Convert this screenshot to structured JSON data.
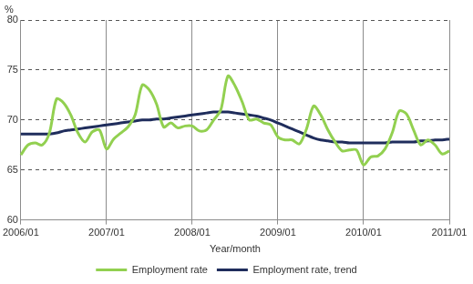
{
  "chart_data": {
    "type": "line",
    "ylabel": "%",
    "xlabel": "Year/month",
    "categories": [
      "2006/01",
      null,
      null,
      null,
      null,
      null,
      null,
      null,
      null,
      null,
      null,
      null,
      "2007/01",
      null,
      null,
      null,
      null,
      null,
      null,
      null,
      null,
      null,
      null,
      null,
      "2008/01",
      null,
      null,
      null,
      null,
      null,
      null,
      null,
      null,
      null,
      null,
      null,
      "2009/01",
      null,
      null,
      null,
      null,
      null,
      null,
      null,
      null,
      null,
      null,
      null,
      "2010/01",
      null,
      null,
      null,
      null,
      null,
      null,
      null,
      null,
      null,
      null,
      null,
      "2011/01"
    ],
    "series": [
      {
        "name": "Employment rate",
        "color": "#92d050",
        "values": [
          66.5,
          67.5,
          67.7,
          67.5,
          68.7,
          72.1,
          71.7,
          70.5,
          68.7,
          67.8,
          68.8,
          69.0,
          67.1,
          68.1,
          68.7,
          69.3,
          70.5,
          73.5,
          73.0,
          71.6,
          69.3,
          69.7,
          69.2,
          69.4,
          69.4,
          68.9,
          69.0,
          70.0,
          71.0,
          74.4,
          73.4,
          71.8,
          70.0,
          70.1,
          69.7,
          69.5,
          68.3,
          68.0,
          68.0,
          67.6,
          69.1,
          71.4,
          70.5,
          69.0,
          67.8,
          66.9,
          67.0,
          67.0,
          65.5,
          66.3,
          66.4,
          67.1,
          68.7,
          70.9,
          70.6,
          69.0,
          67.5,
          68.0,
          67.5,
          66.6,
          66.9
        ]
      },
      {
        "name": "Employment rate, trend",
        "color": "#1f2d5c",
        "values": [
          68.6,
          68.6,
          68.6,
          68.6,
          68.6,
          68.7,
          68.9,
          69.0,
          69.1,
          69.2,
          69.3,
          69.4,
          69.5,
          69.6,
          69.7,
          69.8,
          69.9,
          70.0,
          70.0,
          70.1,
          70.1,
          70.2,
          70.3,
          70.4,
          70.5,
          70.6,
          70.7,
          70.8,
          70.8,
          70.8,
          70.7,
          70.6,
          70.5,
          70.4,
          70.2,
          70.0,
          69.7,
          69.4,
          69.1,
          68.8,
          68.5,
          68.2,
          68.0,
          67.9,
          67.8,
          67.8,
          67.7,
          67.7,
          67.7,
          67.7,
          67.7,
          67.7,
          67.8,
          67.8,
          67.8,
          67.8,
          67.9,
          67.9,
          68.0,
          68.0,
          68.1
        ]
      }
    ],
    "ylim": [
      60,
      80
    ],
    "yticks": [
      60,
      65,
      70,
      75,
      80
    ],
    "grid": true,
    "legend": "bottom"
  }
}
